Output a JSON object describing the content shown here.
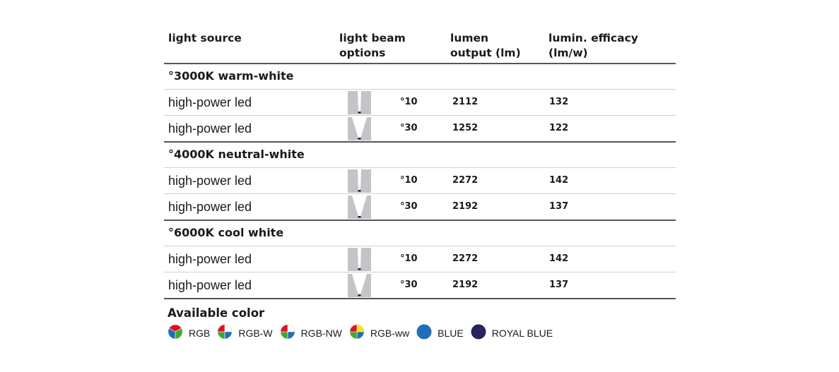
{
  "headers": {
    "source": "light source",
    "beam": "light beam\noptions",
    "lumen": "lumen\noutput (lm)",
    "efficacy": "lumin. efficacy\n(lm/w)"
  },
  "groups": [
    {
      "title": "°3000K warm-white",
      "rows": [
        {
          "source": "high-power led",
          "beam": "°10",
          "lumen": "2112",
          "efficacy": "132"
        },
        {
          "source": "high-power led",
          "beam": "°30",
          "lumen": "1252",
          "efficacy": "122"
        }
      ]
    },
    {
      "title": "°4000K neutral-white",
      "rows": [
        {
          "source": "high-power led",
          "beam": "°10",
          "lumen": "2272",
          "efficacy": "142"
        },
        {
          "source": "high-power led",
          "beam": "°30",
          "lumen": "2192",
          "efficacy": "137"
        }
      ]
    },
    {
      "title": "°6000K cool white",
      "rows": [
        {
          "source": "high-power led",
          "beam": "°10",
          "lumen": "2272",
          "efficacy": "142"
        },
        {
          "source": "high-power led",
          "beam": "°30",
          "lumen": "2192",
          "efficacy": "137"
        }
      ]
    }
  ],
  "available": {
    "title": "Available color",
    "items": [
      {
        "label": "RGB",
        "icon": "rgb-icon"
      },
      {
        "label": "RGB-W",
        "icon": "rgb-w-icon"
      },
      {
        "label": "RGB-NW",
        "icon": "rgb-nw-icon"
      },
      {
        "label": "RGB-ww",
        "icon": "rgb-ww-icon"
      },
      {
        "label": "BLUE",
        "icon": "blue-icon",
        "color": "#1f6fb8"
      },
      {
        "label": "ROYAL BLUE",
        "icon": "royal-blue-icon",
        "color": "#27245e"
      }
    ]
  }
}
